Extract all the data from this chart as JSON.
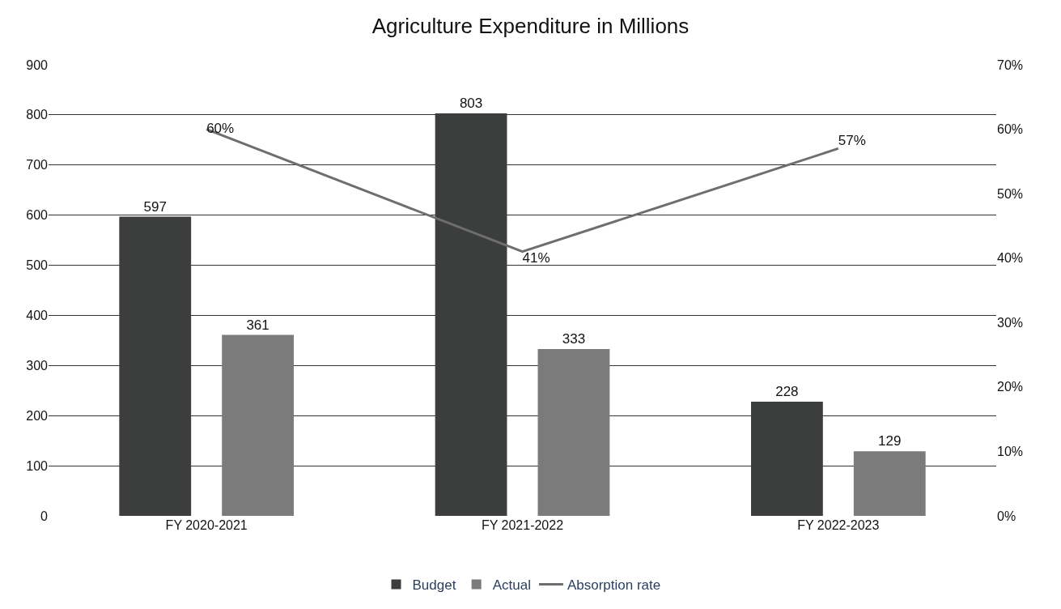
{
  "chart_data": {
    "type": "bar",
    "title": "Agriculture Expenditure in Millions",
    "categories": [
      "FY 2020-2021",
      "FY 2021-2022",
      "FY 2022-2023"
    ],
    "series": [
      {
        "name": "Budget",
        "color": "#3b3e3d",
        "values": [
          597,
          803,
          228
        ],
        "value_labels": [
          "597",
          "803",
          "228"
        ]
      },
      {
        "name": "Actual",
        "color": "#7b7b7b",
        "values": [
          361,
          333,
          129
        ],
        "value_labels": [
          "361",
          "333",
          "129"
        ]
      },
      {
        "name": "Absorption rate",
        "type": "line",
        "axis": "y2",
        "color": "#6e6e6e",
        "values": [
          60,
          41,
          57
        ],
        "value_labels": [
          "60%",
          "41%",
          "57%"
        ]
      }
    ],
    "ylim": [
      0,
      900
    ],
    "yticks": [
      0,
      100,
      200,
      300,
      400,
      500,
      600,
      700,
      800,
      900
    ],
    "y2lim": [
      0,
      70
    ],
    "y2ticks": [
      {
        "value": 0,
        "label": "0%"
      },
      {
        "value": 10,
        "label": "10%"
      },
      {
        "value": 20,
        "label": "20%"
      },
      {
        "value": 30,
        "label": "30%"
      },
      {
        "value": 40,
        "label": "40%"
      },
      {
        "value": 50,
        "label": "50%"
      },
      {
        "value": 60,
        "label": "60%"
      },
      {
        "value": 70,
        "label": "70%"
      }
    ],
    "grid": "y",
    "legend": "bottom",
    "marker": "none",
    "line_style": "solid"
  }
}
